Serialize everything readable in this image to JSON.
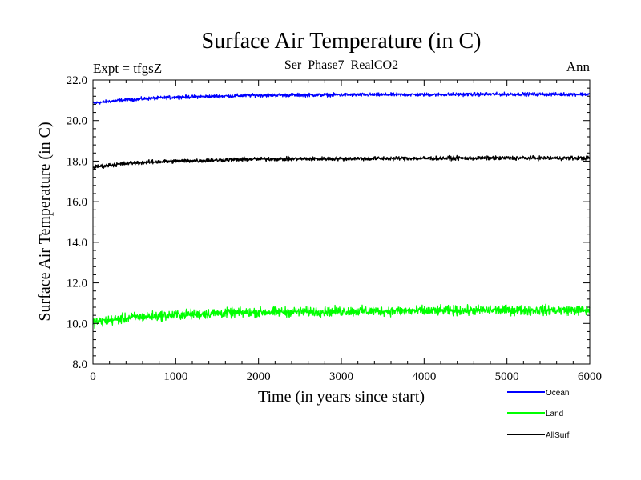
{
  "chart_data": {
    "type": "line",
    "title": "Surface Air Temperature (in C)",
    "subtitle": "Ser_Phase7_RealCO2",
    "experiment_label": "Expt = tfgsZ",
    "period_label": "Ann",
    "xlabel": "Time (in years since start)",
    "ylabel": "Surface Air Temperature (in C)",
    "xlim": [
      0,
      6000
    ],
    "ylim": [
      8.0,
      22.0
    ],
    "x_ticks": [
      0,
      1000,
      2000,
      3000,
      4000,
      5000,
      6000
    ],
    "y_ticks": [
      "8.0",
      "10.0",
      "12.0",
      "14.0",
      "16.0",
      "18.0",
      "20.0",
      "22.0"
    ],
    "legend_position": "bottom-right outside",
    "series": [
      {
        "name": "Ocean",
        "color": "#0000ff",
        "noise": 0.06,
        "x": [
          0,
          200,
          500,
          1000,
          1500,
          2000,
          3000,
          4000,
          5000,
          6000
        ],
        "values": [
          20.85,
          20.95,
          21.05,
          21.15,
          21.2,
          21.25,
          21.27,
          21.28,
          21.3,
          21.3
        ]
      },
      {
        "name": "Land",
        "color": "#00ff00",
        "noise": 0.17,
        "x": [
          0,
          200,
          500,
          1000,
          1500,
          2000,
          3000,
          4000,
          5000,
          6000
        ],
        "values": [
          10.05,
          10.15,
          10.3,
          10.42,
          10.5,
          10.55,
          10.6,
          10.62,
          10.65,
          10.65
        ]
      },
      {
        "name": "AllSurf",
        "color": "#000000",
        "noise": 0.07,
        "x": [
          0,
          200,
          500,
          1000,
          1500,
          2000,
          3000,
          4000,
          5000,
          6000
        ],
        "values": [
          17.7,
          17.8,
          17.92,
          18.0,
          18.05,
          18.1,
          18.12,
          18.14,
          18.15,
          18.15
        ]
      }
    ]
  }
}
